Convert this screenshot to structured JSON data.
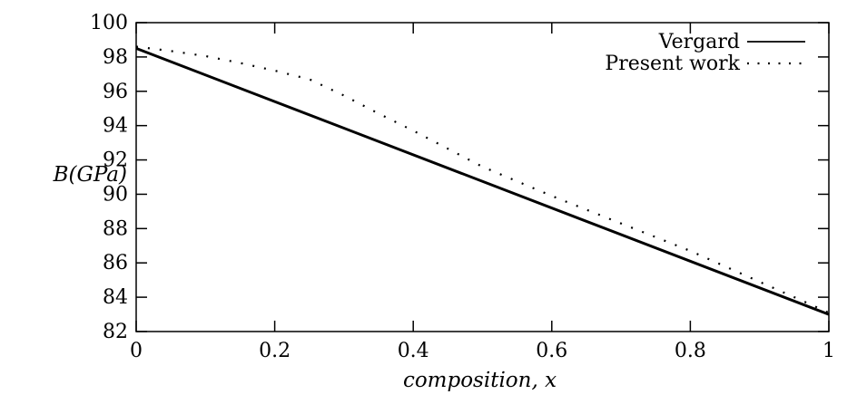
{
  "figure": {
    "background": "#ffffff",
    "line_color": "#000000"
  },
  "chart_data": {
    "type": "line",
    "title": "",
    "xlabel": "composition, x",
    "ylabel": "B(GPa)",
    "xlim": [
      0,
      1
    ],
    "ylim": [
      82,
      100
    ],
    "xticks": [
      0,
      0.2,
      0.4,
      0.6,
      0.8,
      1
    ],
    "xtick_labels": [
      "0",
      "0.2",
      "0.4",
      "0.6",
      "0.8",
      "1"
    ],
    "yticks": [
      82,
      84,
      86,
      88,
      90,
      92,
      94,
      96,
      98,
      100
    ],
    "ytick_labels": [
      "82",
      "84",
      "86",
      "88",
      "90",
      "92",
      "94",
      "96",
      "98",
      "100"
    ],
    "grid": false,
    "tick_style": "inward-mirrored-all-sides",
    "legend": {
      "position": "top-right-inside",
      "entries": [
        {
          "label": "Vergard",
          "line_style": "solid"
        },
        {
          "label": "Present work",
          "line_style": "dotted"
        }
      ]
    },
    "series": [
      {
        "name": "Vergard",
        "line_style": "solid",
        "color": "#000000",
        "x": [
          0,
          1
        ],
        "y": [
          98.5,
          83.0
        ]
      },
      {
        "name": "Present work",
        "line_style": "dotted",
        "color": "#000000",
        "x": [
          0,
          0.05,
          0.1,
          0.15,
          0.2,
          0.25,
          0.3,
          0.35,
          0.4,
          0.45,
          0.5,
          0.55,
          0.6,
          0.65,
          0.7,
          0.75,
          0.8,
          0.85,
          0.9,
          0.95,
          1
        ],
        "y": [
          98.6,
          98.35,
          98.05,
          97.65,
          97.2,
          96.7,
          95.75,
          94.7,
          93.7,
          92.65,
          91.6,
          90.75,
          89.9,
          89.1,
          88.3,
          87.5,
          86.7,
          85.8,
          84.9,
          84.0,
          83.1
        ]
      }
    ]
  }
}
